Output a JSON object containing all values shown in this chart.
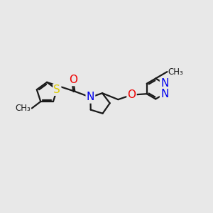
{
  "bg_color": "#e8e8e8",
  "bond_color": "#1a1a1a",
  "atom_colors": {
    "N": "#0000ee",
    "O": "#ee0000",
    "S": "#ddcc00",
    "C": "#1a1a1a"
  },
  "font_size": 10,
  "line_width": 1.6
}
